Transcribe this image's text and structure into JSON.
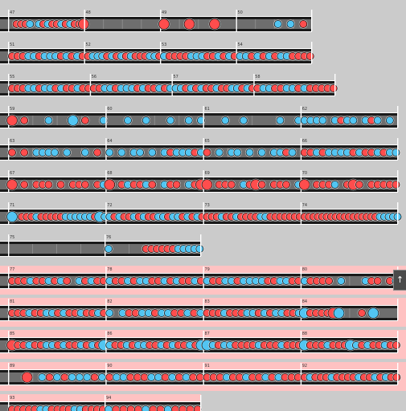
{
  "scroll_top_label": "↑",
  "colors": {
    "don": "#ff4d4d",
    "ka": "#52c5f2",
    "lane": "#6e6e6e",
    "highlight": "#ffc2c2"
  },
  "rows": [
    {
      "highlight": false,
      "measures": [
        {
          "label": "47",
          "notes": "orrrbobrbrrbrbrrO"
        },
        {
          "label": "48",
          "notes": ""
        },
        {
          "label": "49",
          "notes": "OoOoOo"
        },
        {
          "label": "50",
          "notes": "ooobbr"
        }
      ]
    },
    {
      "highlight": false,
      "measures": [
        {
          "label": "51",
          "notes": "rrrbbrbbbrbrbr"
        },
        {
          "label": "52",
          "notes": "rbbbrbrbrbrrrbbr"
        },
        {
          "label": "53",
          "notes": "brrrrbbbrrbrbr"
        },
        {
          "label": "54",
          "notes": "bbrbrbrbbrrrr"
        }
      ]
    },
    {
      "highlight": false,
      "measures": [
        {
          "label": "55",
          "notes": "rrrbbrbbrbrrbrr"
        },
        {
          "label": "56",
          "notes": "rrbbrbbbrbrrbrb"
        },
        {
          "label": "57",
          "notes": "bbrbrbrrbrrbbrbr"
        },
        {
          "label": "58",
          "notes": "rbbrrbbrbrrrrr"
        }
      ]
    },
    {
      "highlight": false,
      "measures": [
        {
          "label": "59",
          "notes": "RoroooboooBoroob"
        },
        {
          "label": "60",
          "notes": "ooobooboooboobob"
        },
        {
          "label": "61",
          "notes": "ooobooboooooboob"
        },
        {
          "label": "62",
          "notes": "bbbbobrbbobrbobo"
        }
      ]
    },
    {
      "highlight": false,
      "measures": [
        {
          "label": "63",
          "notes": "rorobbbbobooboro"
        },
        {
          "label": "64",
          "notes": "bobobbobobrbbbrb"
        },
        {
          "label": "65",
          "notes": "robobbobobobbrbo"
        },
        {
          "label": "66",
          "notes": "rrbrbbbbrbrrbrbb"
        }
      ]
    },
    {
      "highlight": false,
      "measures": [
        {
          "label": "67",
          "notes": "Rororrrororrrorb"
        },
        {
          "label": "68",
          "notes": "RorbrrbrobrrobrO"
        },
        {
          "label": "69",
          "notes": "RorrrobrOrorrrob"
        },
        {
          "label": "70",
          "notes": "RorrrborOrorrrrr"
        }
      ]
    },
    {
      "highlight": false,
      "measures": [
        {
          "label": "71",
          "notes": "BorrrbrrrrrbbbbbbrBb"
        },
        {
          "label": "72",
          "notes": "brbrrbrbrrbbrbbrbrbr"
        },
        {
          "label": "73",
          "notes": "rrrbrrbrrrrbbrrrrrrr"
        },
        {
          "label": "74",
          "notes": "rrrrrrrrrrrrrrrrrbbbbb"
        }
      ]
    },
    {
      "highlight": false,
      "cells": 8,
      "measures": [
        {
          "label": "75",
          "notes": ""
        },
        {
          "label": "76",
          "notes": "boooooorrrrrrbbbbb"
        }
      ]
    },
    {
      "highlight": true,
      "measures": [
        {
          "label": "77",
          "notes": "rrrbrrbrbrobrbrr"
        },
        {
          "label": "78",
          "notes": "brrbrbbrrbrbrrbr"
        },
        {
          "label": "79",
          "notes": "brrbbrbbbbrrbbrr"
        },
        {
          "label": "80",
          "notes": "brrrrobooobrrorb"
        }
      ]
    },
    {
      "highlight": true,
      "measures": [
        {
          "label": "81",
          "notes": "rrrbrrbbrbrrbrrbr"
        },
        {
          "label": "82",
          "notes": "bobrrbbrbbrrbrb"
        },
        {
          "label": "83",
          "notes": "rrrbrrrbbrbrbbrrb"
        },
        {
          "label": "84",
          "notes": "BrrrrOBoooroBoooo"
        }
      ]
    },
    {
      "highlight": true,
      "measures": [
        {
          "label": "85",
          "notes": "RrrbrrbbrbrrbrbrB"
        },
        {
          "label": "86",
          "notes": "brrbrbbrrbrbrrbrB"
        },
        {
          "label": "87",
          "notes": "Bbrbbrrrrbrrrbrrr"
        },
        {
          "label": "88",
          "notes": "BrrrbrrrBbrbrrbrr"
        }
      ]
    },
    {
      "highlight": true,
      "measures": [
        {
          "label": "89",
          "notes": "ooRobrbrbbbrb"
        },
        {
          "label": "90",
          "notes": "rbbrrrbbrbrbrr"
        },
        {
          "label": "91",
          "notes": "rrrbrrbrrbrbrrr"
        },
        {
          "label": "92",
          "notes": "rbrrrbrrrrbrrbrbrr"
        }
      ]
    },
    {
      "highlight": true,
      "cells": 8,
      "measures": [
        {
          "label": "93",
          "notes": "rrrrrbbrrrrbbrrrr"
        },
        {
          "label": "94",
          "notes": "brrrrbrrbrrrr"
        }
      ]
    }
  ]
}
